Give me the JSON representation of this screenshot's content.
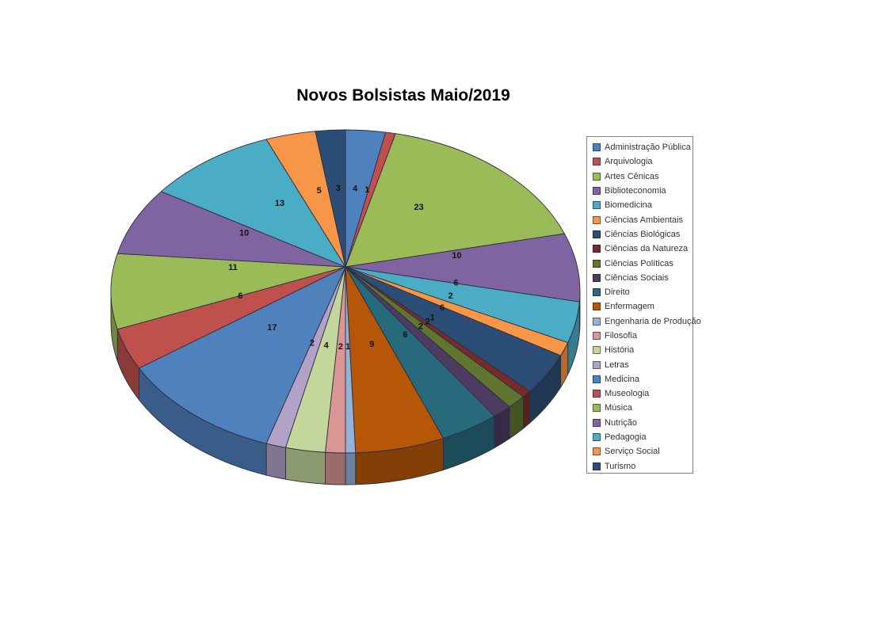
{
  "page": {
    "background": "#ffffff"
  },
  "chart_data": {
    "type": "pie",
    "style": "3d",
    "title": "Novos Bolsistas Maio/2019",
    "legend_position": "right",
    "start_angle_deg": 0,
    "direction": "clockwise",
    "data_labels": "values",
    "categories": [
      "Administração Pública",
      "Arquivologia",
      "Artes Cênicas",
      "Biblioteconomia",
      "Biomedicina",
      "Ciências Ambientais",
      "Ciências Biológicas",
      "Ciências da Natureza",
      "Ciências Políticas",
      "Ciências Sociais",
      "Direito",
      "Enfermagem",
      "Engenharia de Produção",
      "Filosofia",
      "História",
      "Letras",
      "Medicina",
      "Museologia",
      "Música",
      "Nutrição",
      "Pedagogia",
      "Serviço Social",
      "Turismo"
    ],
    "values": [
      4,
      1,
      23,
      10,
      6,
      2,
      6,
      1,
      2,
      2,
      6,
      9,
      1,
      2,
      4,
      2,
      17,
      6,
      11,
      10,
      13,
      5,
      3
    ],
    "colors": [
      "#4F81BD",
      "#C0504D",
      "#9BBB59",
      "#8064A2",
      "#4BACC6",
      "#F79646",
      "#2C4D75",
      "#772C2A",
      "#5F7530",
      "#4D3B62",
      "#276A7C",
      "#B65708",
      "#95B3D7",
      "#D99694",
      "#C3D69B",
      "#B3A2C7",
      "#4F81BD",
      "#C0504D",
      "#9BBB59",
      "#8064A2",
      "#4BACC6",
      "#F79646",
      "#2C4D75"
    ]
  }
}
